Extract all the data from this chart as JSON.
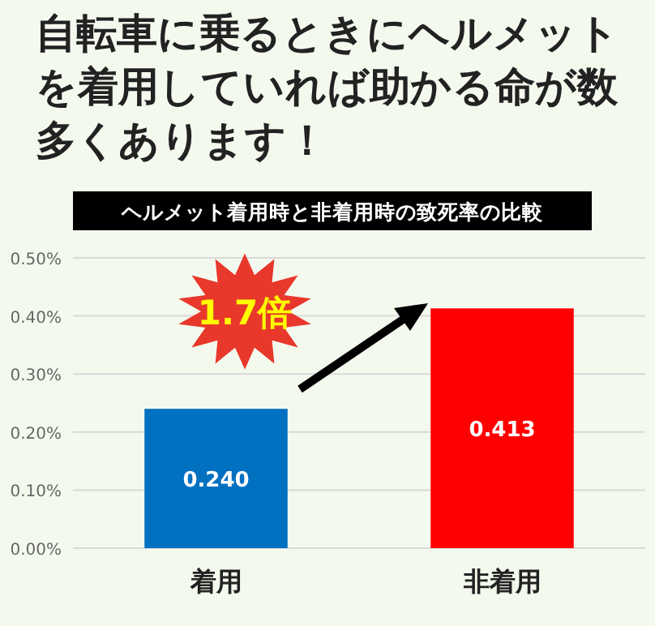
{
  "chart_data": {
    "type": "bar",
    "title": "自転車に乗るときにヘルメットを着用していれば助かる命が数多くあります！",
    "subtitle": "ヘルメット着用時と非着用時の致死率の比較",
    "categories": [
      "着用",
      "非着用"
    ],
    "values": [
      0.24,
      0.413
    ],
    "colors": [
      "#0070c0",
      "#ff0000"
    ],
    "value_labels": [
      "0.240",
      "0.413"
    ],
    "ylim": [
      0,
      0.5
    ],
    "yticks": [
      {
        "value": 0,
        "label": "0.00%"
      },
      {
        "value": 0.1,
        "label": "0.10%"
      },
      {
        "value": 0.2,
        "label": "0.20%"
      },
      {
        "value": 0.3,
        "label": "0.30%"
      },
      {
        "value": 0.4,
        "label": "0.40%"
      },
      {
        "value": 0.5,
        "label": "0.50%"
      }
    ],
    "grid": "y",
    "annotations": [
      "1.7倍"
    ]
  }
}
